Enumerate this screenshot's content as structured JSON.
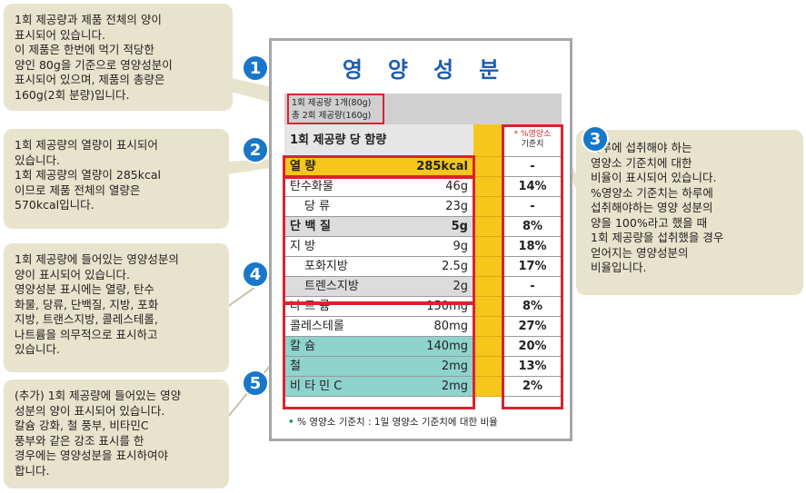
{
  "callouts": {
    "c1": "1회 제공량과 제품 전체의 양이\n표시되어 있습니다.\n이 제품은 한번에 먹기 적당한\n양인 80g을 기준으로 영양성분이\n표시되어 있으며, 제품의 총량은\n160g(2회 분량)입니다.",
    "c2": "1회 제공량의 열량이 표시되어\n있습니다.\n1회 제공량의 열량이 285kcal\n이므로 제품 전체의 열량은\n570kcal입니다.",
    "c3": "하루에 섭취해야 하는\n영양소 기준치에 대한\n비율이 표시되어 있습니다.\n%영양소 기준치는 하루에\n섭취해야하는 영양 성분의\n양을 100%라고 했을 때\n1회 제공량을 섭취했을 경우\n얻어지는 영양성분의\n비율입니다.",
    "c4": "1회 제공량에 들어있는 영양성분의\n양이 표시되어 있습니다.\n영양성분 표시에는 열량, 탄수\n화물, 당류, 단백질, 지방, 포화\n지방, 트랜스지방, 콜레스테롤,\n나트륨을 의무적으로 표시하고\n있습니다.",
    "c5": "(추가) 1회 제공량에 들어있는 영양\n성분의 양이 표시되어 있습니다.\n칼슘 강화, 철 풍부, 비타민C\n풍부와 같은 강조 표시를 한\n경우에는 영양성분을 표시하여야\n합니다."
  },
  "badges": [
    "1",
    "2",
    "3",
    "4",
    "5"
  ],
  "label": {
    "title": "영양성분",
    "serving_line1": "1회 제공량 1개(80g)",
    "serving_line2": "총 2회 제공량(160g)",
    "header_main": "1회 제공량 당 함량",
    "header_pct_line1": "* %영양소",
    "header_pct_line2": "기준치",
    "rows": [
      {
        "name": "열        량",
        "amount": "285kcal",
        "pct": "-"
      },
      {
        "name": "탄수화물",
        "amount": "46g",
        "pct": "14%"
      },
      {
        "name": "당  류",
        "amount": "23g",
        "pct": "-"
      },
      {
        "name": "단 백 질",
        "amount": "5g",
        "pct": "8%"
      },
      {
        "name": "지  방",
        "amount": "9g",
        "pct": "18%"
      },
      {
        "name": "포화지방",
        "amount": "2.5g",
        "pct": "17%"
      },
      {
        "name": "트렌스지방",
        "amount": "2g",
        "pct": "-"
      },
      {
        "name": "나 트 륨",
        "amount": "150mg",
        "pct": "8%"
      },
      {
        "name": "콜레스테롤",
        "amount": "80mg",
        "pct": "27%"
      },
      {
        "name": "칼  슘",
        "amount": "140mg",
        "pct": "20%"
      },
      {
        "name": "철",
        "amount": "2mg",
        "pct": "13%"
      },
      {
        "name": "비 타 민 C",
        "amount": "2mg",
        "pct": "2%"
      }
    ],
    "footnote_star": "•",
    "footnote": "% 영양소 기준치 : 1일 영양소 기준치에 대한 비율"
  },
  "colors": {
    "badge": "#1877c8",
    "highlight_red": "#d9232d",
    "gold": "#f5c61c",
    "teal": "#8fd3cd",
    "callout_bg": "#e8e3cc"
  }
}
